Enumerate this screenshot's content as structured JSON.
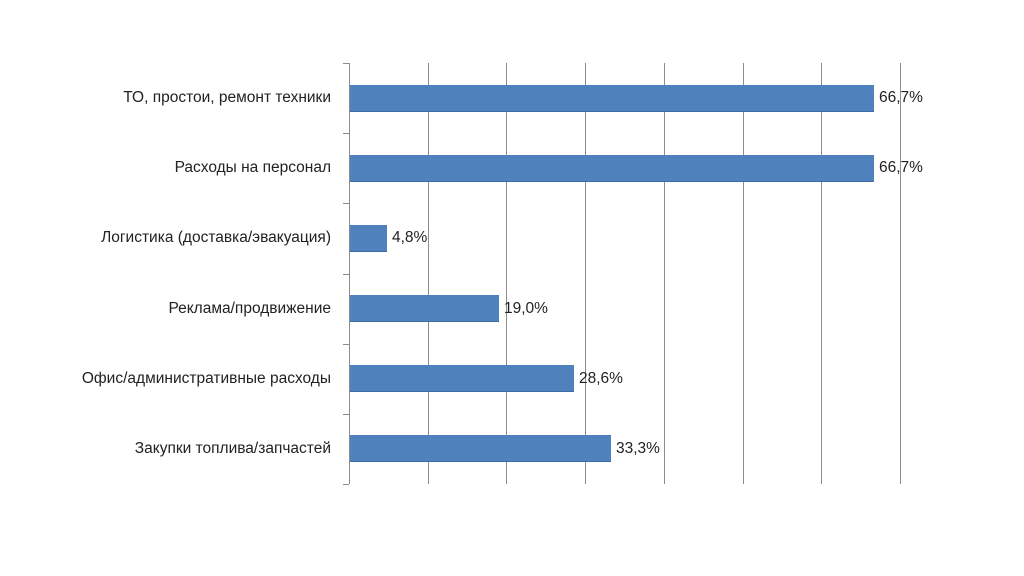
{
  "chart_data": {
    "type": "bar",
    "orientation": "horizontal",
    "title": "",
    "xlabel": "",
    "ylabel": "",
    "categories": [
      "ТО, простои, ремонт техники",
      "Расходы на персонал",
      "Логистика (доставка/эвакуация)",
      "Реклама/продвижение",
      "Офис/административные расходы",
      "Закупки топлива/запчастей"
    ],
    "values": [
      66.7,
      66.7,
      4.8,
      19.0,
      28.6,
      33.3
    ],
    "value_labels": [
      "66,7%",
      "66,7%",
      "4,8%",
      "19,0%",
      "28,6%",
      "33,3%"
    ],
    "xlim": [
      0,
      70
    ],
    "x_gridlines": [
      10,
      20,
      30,
      40,
      50,
      60,
      70
    ],
    "grid": true,
    "x_tick_labels_visible": false,
    "legend": "none",
    "bar_color": "#4f81bd",
    "unit": "%"
  }
}
